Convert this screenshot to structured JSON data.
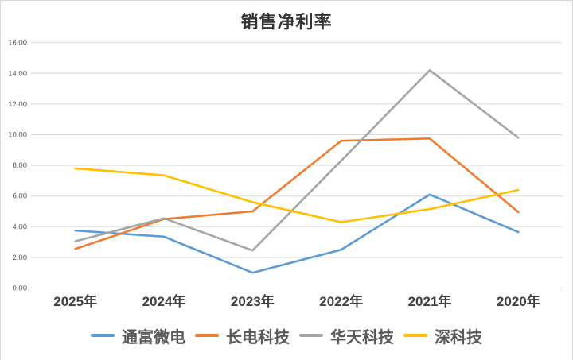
{
  "chart_data": {
    "type": "line",
    "title": "销售净利率",
    "categories": [
      "2025年",
      "2024年",
      "2023年",
      "2022年",
      "2021年",
      "2020年"
    ],
    "series": [
      {
        "name": "通富微电",
        "color": "#5B9BD5",
        "values": [
          3.75,
          3.35,
          1.0,
          2.5,
          6.1,
          3.65
        ]
      },
      {
        "name": "长电科技",
        "color": "#ED7D31",
        "values": [
          2.55,
          4.5,
          5.0,
          9.6,
          9.75,
          4.95
        ]
      },
      {
        "name": "华天科技",
        "color": "#A5A5A5",
        "values": [
          3.05,
          4.55,
          2.45,
          8.3,
          14.2,
          9.8
        ]
      },
      {
        "name": "深科技",
        "color": "#FFC000",
        "values": [
          7.8,
          7.35,
          5.6,
          4.3,
          5.15,
          6.4
        ]
      }
    ],
    "ylim": [
      0,
      16
    ],
    "y_tick_step": 2,
    "y_tick_decimals": 2,
    "grid": true,
    "legend_position": "bottom",
    "colors": {
      "gridline": "#d9d9d9",
      "axis_line": "#c6c6c6",
      "y_tick_text": "#595959",
      "x_tick_text": "#404040"
    }
  }
}
